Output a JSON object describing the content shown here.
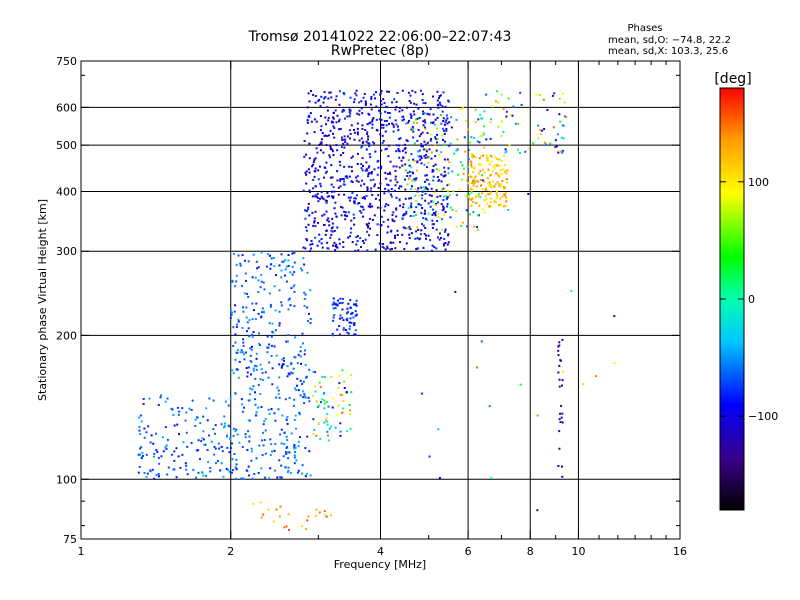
{
  "chart_data": {
    "type": "scatter",
    "title": "Tromsø 20141022 22:06:00–22:07:43",
    "subtitle": "RwPretec (8p)",
    "xlabel": "Frequency [MHz]",
    "ylabel": "Stationary phase Virtual Height [km]",
    "x_scale": "log",
    "y_scale": "log",
    "xlim": [
      1,
      16
    ],
    "ylim": [
      75,
      750
    ],
    "x_ticks": [
      1,
      2,
      4,
      6,
      8,
      10,
      16
    ],
    "x_tick_labels": [
      "1",
      "2",
      "4",
      "6",
      "8",
      "10",
      "16"
    ],
    "x_gridlines": [
      2,
      4,
      6,
      8,
      10
    ],
    "y_ticks": [
      75,
      100,
      200,
      300,
      400,
      500,
      600,
      750
    ],
    "y_tick_labels": [
      "75",
      "100",
      "200",
      "300",
      "400",
      "500",
      "600",
      "750"
    ],
    "y_gridlines": [
      100,
      200,
      300,
      400,
      500,
      600
    ],
    "grid": true,
    "legend": {
      "title": "Phases",
      "lines": [
        "mean, sd,O: −74.8, 22.2",
        "mean, sd,X: 103.3, 25.6"
      ],
      "placement": "top-right"
    },
    "colorbar": {
      "label": "[deg]",
      "min": -180,
      "max": 180,
      "ticks": [
        -100,
        0,
        100
      ],
      "tick_labels": [
        "−100",
        "0",
        "100"
      ],
      "colormap": "rainbow"
    },
    "clusters": [
      {
        "f_range": [
          1.3,
          2.0
        ],
        "h_range": [
          100,
          150
        ],
        "phase": [
          -90,
          -40
        ],
        "density": "medium"
      },
      {
        "f_range": [
          2.0,
          2.9
        ],
        "h_range": [
          100,
          300
        ],
        "phase": [
          -90,
          -40
        ],
        "density": "high"
      },
      {
        "f_range": [
          2.9,
          3.5
        ],
        "h_range": [
          120,
          170
        ],
        "phase": [
          -110,
          150
        ],
        "density": "low"
      },
      {
        "f_range": [
          3.2,
          3.6
        ],
        "h_range": [
          200,
          240
        ],
        "phase": [
          -100,
          -60
        ],
        "density": "low"
      },
      {
        "f_range": [
          2.8,
          5.5
        ],
        "h_range": [
          300,
          650
        ],
        "phase": [
          -130,
          -70
        ],
        "density": "very-high"
      },
      {
        "f_range": [
          4.5,
          6.5
        ],
        "h_range": [
          330,
          600
        ],
        "phase": [
          -110,
          140
        ],
        "density": "medium"
      },
      {
        "f_range": [
          6.0,
          7.2
        ],
        "h_range": [
          370,
          480
        ],
        "phase": [
          90,
          150
        ],
        "density": "medium"
      },
      {
        "f_range": [
          6.5,
          9.5
        ],
        "h_range": [
          480,
          650
        ],
        "phase": [
          -120,
          150
        ],
        "density": "low"
      },
      {
        "f_range": [
          2.2,
          3.2
        ],
        "h_range": [
          78,
          90
        ],
        "phase": [
          100,
          160
        ],
        "density": "sparse"
      },
      {
        "f_range": [
          4.5,
          13.0
        ],
        "h_range": [
          85,
          600
        ],
        "phase": [
          -130,
          160
        ],
        "density": "sparse"
      },
      {
        "f_range": [
          9.1,
          9.3
        ],
        "h_range": [
          100,
          200
        ],
        "phase": [
          -150,
          -100
        ],
        "density": "sparse"
      }
    ]
  }
}
